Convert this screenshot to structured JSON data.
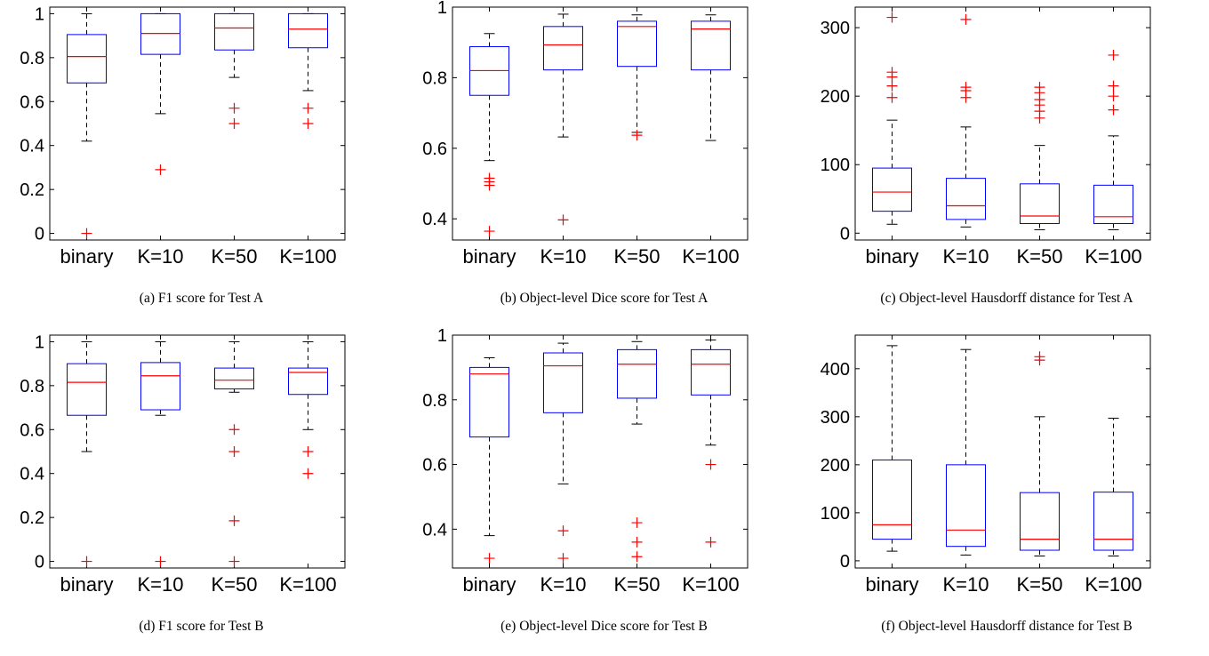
{
  "chart_data": [
    {
      "type": "box",
      "caption": "(a) F1 score for Test A",
      "categories": [
        "binary",
        "K=10",
        "K=50",
        "K=100"
      ],
      "ylim": [
        -0.03,
        1.03
      ],
      "yticks": [
        0,
        0.2,
        0.4,
        0.6,
        0.8,
        1
      ],
      "ytick_labels": [
        "0",
        "0.2",
        "0.4",
        "0.6",
        "0.8",
        "1"
      ],
      "boxes": [
        {
          "whisker_low": 0.42,
          "q1": 0.685,
          "median": 0.805,
          "q3": 0.905,
          "whisker_high": 1.0,
          "outliers": [
            0.0
          ]
        },
        {
          "whisker_low": 0.545,
          "q1": 0.815,
          "median": 0.91,
          "q3": 1.0,
          "whisker_high": 1.0,
          "outliers": [
            0.29
          ]
        },
        {
          "whisker_low": 0.71,
          "q1": 0.835,
          "median": 0.935,
          "q3": 1.0,
          "whisker_high": 1.0,
          "outliers": [
            0.57,
            0.5
          ]
        },
        {
          "whisker_low": 0.65,
          "q1": 0.845,
          "median": 0.93,
          "q3": 1.0,
          "whisker_high": 1.0,
          "outliers": [
            0.57,
            0.5
          ]
        }
      ]
    },
    {
      "type": "box",
      "caption": "(b) Object-level Dice score for Test A",
      "categories": [
        "binary",
        "K=10",
        "K=50",
        "K=100"
      ],
      "ylim": [
        0.34,
        1.0
      ],
      "yticks": [
        0.4,
        0.6,
        0.8,
        1
      ],
      "ytick_labels": [
        "0.4",
        "0.6",
        "0.8",
        "1"
      ],
      "boxes": [
        {
          "whisker_low": 0.565,
          "q1": 0.75,
          "median": 0.82,
          "q3": 0.888,
          "whisker_high": 0.925,
          "outliers": [
            0.515,
            0.505,
            0.495,
            0.365
          ]
        },
        {
          "whisker_low": 0.632,
          "q1": 0.822,
          "median": 0.893,
          "q3": 0.945,
          "whisker_high": 0.98,
          "outliers": [
            0.397
          ]
        },
        {
          "whisker_low": 0.645,
          "q1": 0.832,
          "median": 0.945,
          "q3": 0.96,
          "whisker_high": 0.978,
          "outliers": [
            0.637
          ]
        },
        {
          "whisker_low": 0.622,
          "q1": 0.822,
          "median": 0.938,
          "q3": 0.96,
          "whisker_high": 0.978,
          "outliers": []
        }
      ]
    },
    {
      "type": "box",
      "caption": "(c) Object-level Hausdorff distance for Test A",
      "categories": [
        "binary",
        "K=10",
        "K=50",
        "K=100"
      ],
      "ylim": [
        -10,
        330
      ],
      "yticks": [
        0,
        100,
        200,
        300
      ],
      "ytick_labels": [
        "0",
        "100",
        "200",
        "300"
      ],
      "boxes": [
        {
          "whisker_low": 13,
          "q1": 32,
          "median": 60,
          "q3": 95,
          "whisker_high": 165,
          "outliers": [
            315,
            235,
            228,
            215,
            198
          ]
        },
        {
          "whisker_low": 9,
          "q1": 20,
          "median": 40,
          "q3": 80,
          "whisker_high": 155,
          "outliers": [
            312,
            213,
            208,
            198
          ]
        },
        {
          "whisker_low": 5,
          "q1": 14,
          "median": 25,
          "q3": 72,
          "whisker_high": 128,
          "outliers": [
            213,
            205,
            195,
            187,
            178,
            168
          ]
        },
        {
          "whisker_low": 5,
          "q1": 14,
          "median": 24,
          "q3": 70,
          "whisker_high": 142,
          "outliers": [
            260,
            215,
            200,
            180
          ]
        }
      ]
    },
    {
      "type": "box",
      "caption": "(d) F1 score for Test B",
      "categories": [
        "binary",
        "K=10",
        "K=50",
        "K=100"
      ],
      "ylim": [
        -0.03,
        1.03
      ],
      "yticks": [
        0,
        0.2,
        0.4,
        0.6,
        0.8,
        1
      ],
      "ytick_labels": [
        "0",
        "0.2",
        "0.4",
        "0.6",
        "0.8",
        "1"
      ],
      "boxes": [
        {
          "whisker_low": 0.5,
          "q1": 0.665,
          "median": 0.815,
          "q3": 0.9,
          "whisker_high": 1.0,
          "outliers": [
            0.0
          ]
        },
        {
          "whisker_low": 0.665,
          "q1": 0.69,
          "median": 0.845,
          "q3": 0.905,
          "whisker_high": 1.0,
          "outliers": [
            0.0
          ]
        },
        {
          "whisker_low": 0.77,
          "q1": 0.785,
          "median": 0.825,
          "q3": 0.88,
          "whisker_high": 1.0,
          "outliers": [
            0.6,
            0.5,
            0.185,
            0.0
          ]
        },
        {
          "whisker_low": 0.6,
          "q1": 0.76,
          "median": 0.86,
          "q3": 0.88,
          "whisker_high": 1.0,
          "outliers": [
            0.5,
            0.4
          ]
        }
      ]
    },
    {
      "type": "box",
      "caption": "(e) Object-level Dice score for Test B",
      "categories": [
        "binary",
        "K=10",
        "K=50",
        "K=100"
      ],
      "ylim": [
        0.28,
        1.0
      ],
      "yticks": [
        0.4,
        0.6,
        0.8,
        1
      ],
      "ytick_labels": [
        "0.4",
        "0.6",
        "0.8",
        "1"
      ],
      "boxes": [
        {
          "whisker_low": 0.38,
          "q1": 0.685,
          "median": 0.88,
          "q3": 0.9,
          "whisker_high": 0.93,
          "outliers": [
            0.31
          ]
        },
        {
          "whisker_low": 0.54,
          "q1": 0.76,
          "median": 0.905,
          "q3": 0.945,
          "whisker_high": 0.975,
          "outliers": [
            0.395,
            0.31
          ]
        },
        {
          "whisker_low": 0.725,
          "q1": 0.805,
          "median": 0.91,
          "q3": 0.955,
          "whisker_high": 0.98,
          "outliers": [
            0.42,
            0.36,
            0.315
          ]
        },
        {
          "whisker_low": 0.66,
          "q1": 0.815,
          "median": 0.91,
          "q3": 0.955,
          "whisker_high": 0.985,
          "outliers": [
            0.6,
            0.36
          ]
        }
      ]
    },
    {
      "type": "box",
      "caption": "(f) Object-level Hausdorff distance for Test B",
      "categories": [
        "binary",
        "K=10",
        "K=50",
        "K=100"
      ],
      "ylim": [
        -15,
        470
      ],
      "yticks": [
        0,
        100,
        200,
        300,
        400
      ],
      "ytick_labels": [
        "0",
        "100",
        "200",
        "300",
        "400"
      ],
      "boxes": [
        {
          "whisker_low": 20,
          "q1": 45,
          "median": 75,
          "q3": 210,
          "whisker_high": 448,
          "outliers": []
        },
        {
          "whisker_low": 12,
          "q1": 30,
          "median": 64,
          "q3": 200,
          "whisker_high": 440,
          "outliers": []
        },
        {
          "whisker_low": 10,
          "q1": 22,
          "median": 45,
          "q3": 142,
          "whisker_high": 300,
          "outliers": [
            425,
            418
          ]
        },
        {
          "whisker_low": 10,
          "q1": 22,
          "median": 45,
          "q3": 143,
          "whisker_high": 297,
          "outliers": []
        }
      ]
    }
  ]
}
